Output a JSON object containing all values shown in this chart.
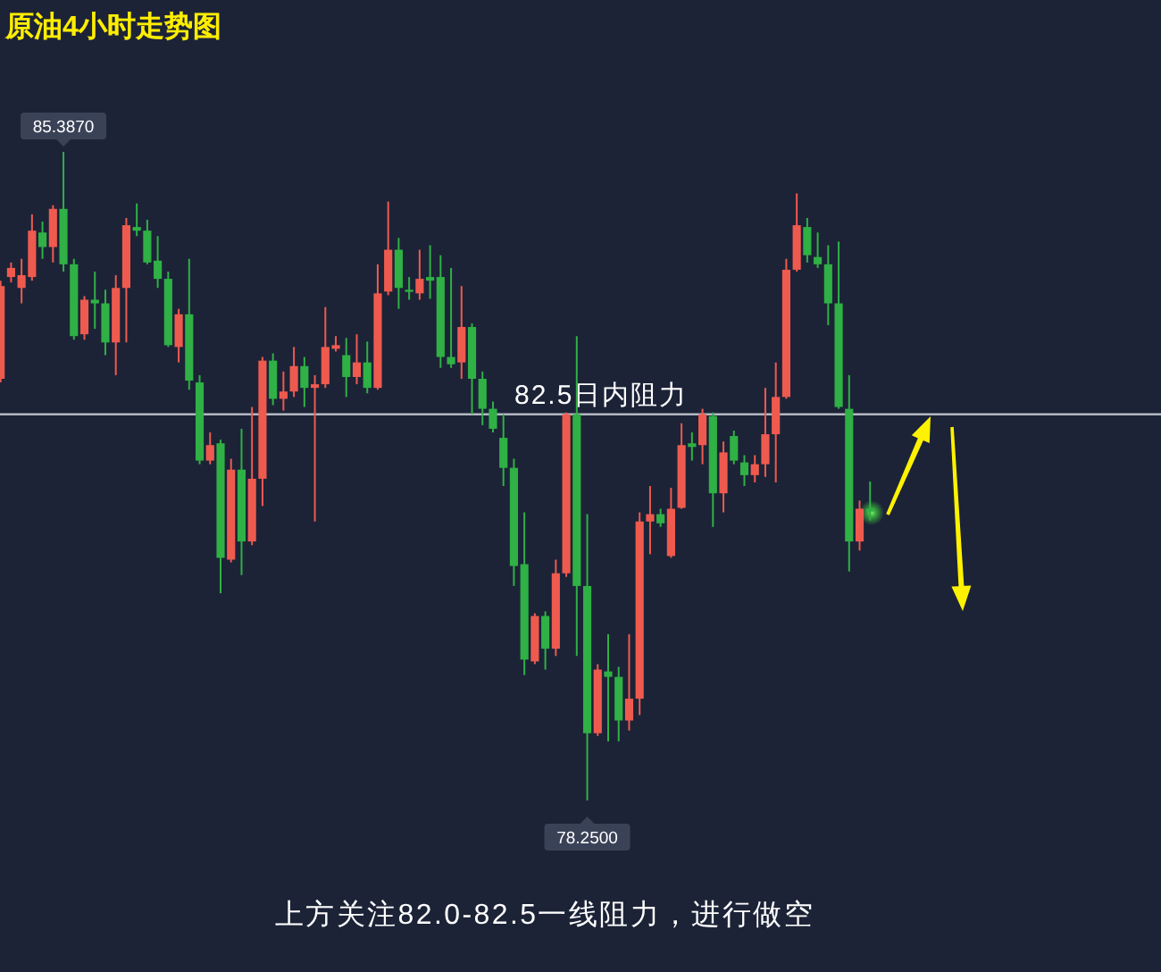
{
  "chart_data": {
    "type": "candlestick",
    "title": "原油4小时走势图",
    "categories": [
      null,
      null,
      null,
      null,
      null,
      null,
      null,
      null,
      null,
      null,
      null,
      null,
      null,
      null,
      null,
      null,
      null,
      null,
      null,
      null,
      null,
      null,
      null,
      null,
      null,
      null,
      null,
      null,
      null,
      null,
      null,
      null,
      null,
      null,
      null,
      null,
      null,
      null,
      null,
      null,
      null,
      null,
      null,
      null,
      null,
      null,
      null,
      null,
      null,
      null,
      null,
      null,
      null,
      null,
      null,
      null,
      null,
      null,
      null,
      null,
      null,
      null,
      null,
      null,
      null,
      null,
      null,
      null,
      null,
      null,
      null,
      null,
      null,
      null,
      null,
      null,
      null,
      null,
      null,
      null,
      null,
      null,
      null,
      null
    ],
    "ohlc": [
      [
        82.89,
        83.97,
        82.85,
        83.91
      ],
      [
        84.01,
        84.17,
        83.95,
        84.11
      ],
      [
        83.89,
        84.21,
        83.72,
        84.03
      ],
      [
        84.01,
        84.7,
        83.97,
        84.52
      ],
      [
        84.5,
        84.62,
        84.21,
        84.34
      ],
      [
        84.34,
        84.8,
        84.17,
        84.76
      ],
      [
        84.76,
        85.387,
        84.07,
        84.15
      ],
      [
        84.15,
        84.21,
        83.32,
        83.36
      ],
      [
        83.38,
        83.8,
        83.32,
        83.76
      ],
      [
        83.76,
        84.07,
        83.44,
        83.72
      ],
      [
        83.72,
        83.87,
        83.15,
        83.29
      ],
      [
        83.29,
        84.03,
        82.93,
        83.89
      ],
      [
        83.89,
        84.66,
        83.29,
        84.58
      ],
      [
        84.56,
        84.82,
        84.46,
        84.52
      ],
      [
        84.52,
        84.64,
        84.15,
        84.17
      ],
      [
        84.19,
        84.46,
        83.89,
        83.99
      ],
      [
        83.99,
        84.07,
        83.24,
        83.26
      ],
      [
        83.24,
        83.66,
        83.07,
        83.6
      ],
      [
        83.6,
        84.21,
        82.77,
        82.87
      ],
      [
        82.85,
        82.93,
        81.95,
        81.99
      ],
      [
        81.99,
        82.3,
        81.95,
        82.16
      ],
      [
        82.18,
        82.22,
        80.53,
        80.92
      ],
      [
        80.9,
        82.01,
        80.87,
        81.89
      ],
      [
        81.89,
        82.34,
        80.73,
        81.1
      ],
      [
        81.1,
        82.58,
        81.06,
        81.79
      ],
      [
        81.79,
        83.13,
        81.49,
        83.09
      ],
      [
        83.09,
        83.17,
        82.6,
        82.67
      ],
      [
        82.67,
        82.97,
        82.54,
        82.75
      ],
      [
        82.75,
        83.24,
        82.69,
        83.03
      ],
      [
        83.03,
        83.13,
        82.58,
        82.79
      ],
      [
        82.79,
        82.93,
        81.32,
        82.83
      ],
      [
        82.83,
        83.68,
        82.79,
        83.24
      ],
      [
        83.22,
        83.36,
        83.19,
        83.26
      ],
      [
        83.15,
        83.34,
        82.69,
        82.91
      ],
      [
        82.91,
        83.38,
        82.83,
        83.07
      ],
      [
        83.07,
        83.3,
        82.73,
        82.79
      ],
      [
        82.79,
        84.15,
        82.77,
        83.83
      ],
      [
        83.85,
        84.84,
        83.81,
        84.31
      ],
      [
        84.31,
        84.44,
        83.66,
        83.89
      ],
      [
        83.87,
        84.01,
        83.76,
        83.85
      ],
      [
        83.83,
        84.31,
        83.76,
        83.99
      ],
      [
        84.01,
        84.36,
        83.77,
        83.97
      ],
      [
        84.01,
        84.25,
        83.01,
        83.13
      ],
      [
        83.13,
        84.11,
        83.01,
        83.05
      ],
      [
        83.07,
        83.91,
        82.89,
        83.46
      ],
      [
        83.46,
        83.5,
        82.5,
        82.89
      ],
      [
        82.89,
        82.97,
        82.38,
        82.56
      ],
      [
        82.56,
        82.64,
        82.3,
        82.34
      ],
      [
        82.24,
        82.5,
        81.71,
        81.91
      ],
      [
        81.91,
        82.01,
        80.61,
        80.83
      ],
      [
        80.85,
        81.42,
        79.63,
        79.8
      ],
      [
        79.78,
        80.31,
        79.75,
        80.28
      ],
      [
        80.28,
        80.33,
        79.69,
        79.92
      ],
      [
        79.92,
        80.9,
        79.84,
        80.75
      ],
      [
        80.75,
        82.52,
        80.71,
        82.5
      ],
      [
        82.5,
        83.36,
        79.84,
        80.61
      ],
      [
        80.61,
        81.4,
        78.25,
        78.99
      ],
      [
        78.99,
        79.75,
        78.96,
        79.69
      ],
      [
        79.67,
        80.08,
        78.9,
        79.61
      ],
      [
        79.61,
        79.72,
        78.9,
        79.13
      ],
      [
        79.13,
        80.08,
        79.02,
        79.37
      ],
      [
        79.37,
        81.42,
        79.19,
        81.32
      ],
      [
        81.32,
        81.71,
        80.96,
        81.4
      ],
      [
        81.4,
        81.46,
        81.26,
        81.3
      ],
      [
        80.94,
        81.69,
        80.92,
        81.46
      ],
      [
        81.47,
        82.4,
        81.46,
        82.16
      ],
      [
        82.18,
        82.3,
        81.99,
        82.14
      ],
      [
        82.16,
        82.56,
        81.95,
        82.5
      ],
      [
        82.48,
        82.52,
        81.26,
        81.63
      ],
      [
        81.63,
        82.2,
        81.42,
        82.08
      ],
      [
        82.26,
        82.32,
        81.95,
        81.99
      ],
      [
        81.97,
        82.05,
        81.71,
        81.83
      ],
      [
        81.83,
        82.05,
        81.75,
        81.95
      ],
      [
        81.95,
        82.79,
        81.81,
        82.28
      ],
      [
        82.28,
        83.07,
        81.75,
        82.69
      ],
      [
        82.69,
        84.21,
        82.67,
        84.09
      ],
      [
        84.09,
        84.93,
        84.07,
        84.58
      ],
      [
        84.56,
        84.66,
        84.17,
        84.25
      ],
      [
        84.23,
        84.5,
        84.11,
        84.15
      ],
      [
        84.15,
        84.36,
        83.48,
        83.72
      ],
      [
        83.72,
        84.4,
        82.56,
        82.58
      ],
      [
        82.56,
        82.93,
        80.77,
        81.1
      ],
      [
        81.1,
        81.55,
        81.0,
        81.46
      ],
      [
        81.46,
        81.76,
        81.33,
        81.43
      ]
    ],
    "colors": [
      "#ef5a4f",
      "#ef5a4f",
      "#ef5a4f",
      "#ef5a4f",
      "#2fb145",
      "#ef5a4f",
      "#2fb145",
      "#2fb145",
      "#ef5a4f",
      "#2fb145",
      "#2fb145",
      "#ef5a4f",
      "#ef5a4f",
      "#2fb145",
      "#2fb145",
      "#2fb145",
      "#2fb145",
      "#ef5a4f",
      "#2fb145",
      "#2fb145",
      "#ef5a4f",
      "#2fb145",
      "#ef5a4f",
      "#2fb145",
      "#ef5a4f",
      "#ef5a4f",
      "#2fb145",
      "#ef5a4f",
      "#ef5a4f",
      "#2fb145",
      "#ef5a4f",
      "#ef5a4f",
      "#ef5a4f",
      "#2fb145",
      "#ef5a4f",
      "#2fb145",
      "#ef5a4f",
      "#ef5a4f",
      "#2fb145",
      "#2fb145",
      "#ef5a4f",
      "#2fb145",
      "#2fb145",
      "#2fb145",
      "#ef5a4f",
      "#2fb145",
      "#2fb145",
      "#2fb145",
      "#2fb145",
      "#2fb145",
      "#2fb145",
      "#ef5a4f",
      "#2fb145",
      "#ef5a4f",
      "#ef5a4f",
      "#2fb145",
      "#2fb145",
      "#ef5a4f",
      "#2fb145",
      "#2fb145",
      "#ef5a4f",
      "#ef5a4f",
      "#ef5a4f",
      "#2fb145",
      "#ef5a4f",
      "#ef5a4f",
      "#2fb145",
      "#ef5a4f",
      "#2fb145",
      "#ef5a4f",
      "#2fb145",
      "#2fb145",
      "#ef5a4f",
      "#ef5a4f",
      "#ef5a4f",
      "#ef5a4f",
      "#ef5a4f",
      "#2fb145",
      "#2fb145",
      "#2fb145",
      "#2fb145",
      "#2fb145",
      "#ef5a4f",
      "#2fb145"
    ],
    "ref_lines": [
      {
        "axis": "y",
        "value": 82.5,
        "label": "82.5日内阻力",
        "color": "#b3b8c2"
      }
    ],
    "annotations": [
      {
        "text": "85.3870",
        "y": 85.387
      },
      {
        "text": "78.2500",
        "y": 78.25
      },
      "上方关注82.0-82.5一线阻力，进行做空"
    ]
  }
}
